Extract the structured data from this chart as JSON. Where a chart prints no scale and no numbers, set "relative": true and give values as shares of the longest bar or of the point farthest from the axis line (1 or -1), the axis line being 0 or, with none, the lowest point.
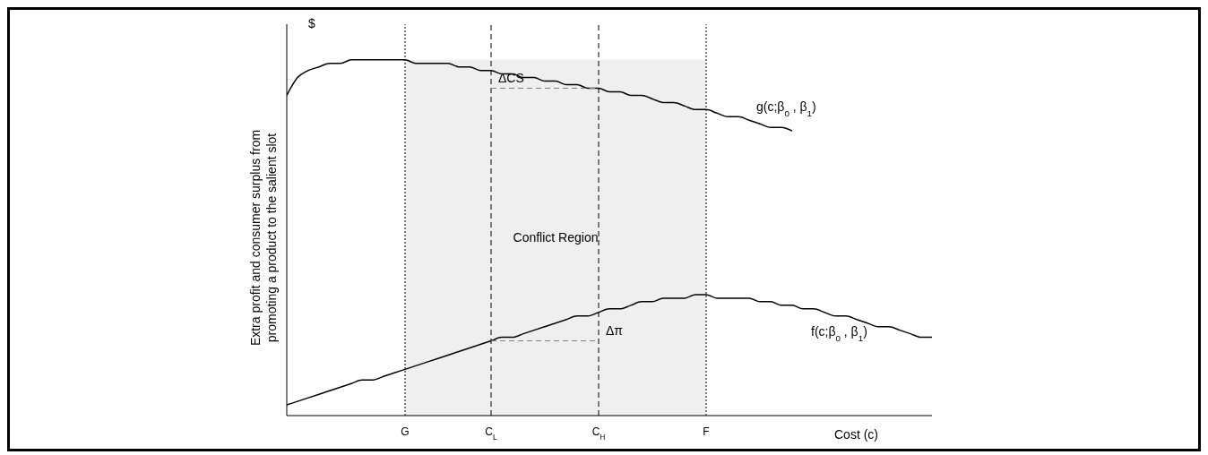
{
  "chart_data": {
    "type": "line",
    "relative": true,
    "xlabel": "Cost (c)",
    "ylabel": "Extra profit and consumer surplus from promoting a product to the salient slot",
    "categories": [
      null,
      null,
      null,
      null,
      null,
      null,
      null,
      null,
      null,
      null,
      null,
      "G",
      null,
      null,
      null,
      null,
      null,
      null,
      null,
      "C$_{L}$",
      null,
      null,
      null,
      null,
      null,
      null,
      null,
      null,
      null,
      "C$_{H}$",
      null,
      null,
      null,
      null,
      null,
      null,
      null,
      null,
      null,
      "F",
      null,
      null,
      null,
      null,
      null,
      null,
      null,
      null,
      null,
      null,
      null,
      null,
      null,
      null,
      null,
      null,
      null,
      null,
      null,
      null,
      null
    ],
    "series": [
      {
        "name": "g(c;β$_{0}$ , β$_{1}$)",
        "color": "#000000",
        "line_style": "solid",
        "values": [
          0.9,
          0.95,
          0.97,
          0.98,
          0.99,
          0.99,
          1.0,
          1.0,
          1.0,
          1.0,
          1.0,
          1.0,
          0.99,
          0.99,
          0.99,
          0.99,
          0.98,
          0.98,
          0.97,
          0.97,
          0.96,
          0.96,
          0.95,
          0.95,
          0.94,
          0.94,
          0.93,
          0.93,
          0.92,
          0.92,
          0.91,
          0.91,
          0.9,
          0.9,
          0.89,
          0.88,
          0.88,
          0.87,
          0.86,
          0.86,
          0.85,
          0.84,
          0.84,
          0.83,
          0.82,
          0.81,
          0.81,
          0.8,
          null,
          null,
          null,
          null,
          null,
          null,
          null,
          null,
          null,
          null,
          null,
          null,
          null
        ]
      },
      {
        "name": "f(c;β$_{0}$ , β$_{1}$)",
        "color": "#000000",
        "line_style": "solid",
        "values": [
          0.03,
          0.04,
          0.05,
          0.06,
          0.07,
          0.08,
          0.09,
          0.1,
          0.1,
          0.11,
          0.12,
          0.13,
          0.14,
          0.15,
          0.16,
          0.17,
          0.18,
          0.19,
          0.2,
          0.21,
          0.22,
          0.22,
          0.23,
          0.24,
          0.25,
          0.26,
          0.27,
          0.28,
          0.28,
          0.29,
          0.3,
          0.3,
          0.31,
          0.32,
          0.32,
          0.33,
          0.33,
          0.33,
          0.34,
          0.34,
          0.33,
          0.33,
          0.33,
          0.33,
          0.32,
          0.32,
          0.31,
          0.31,
          0.3,
          0.3,
          0.29,
          0.28,
          0.28,
          0.27,
          0.26,
          0.25,
          0.25,
          0.24,
          0.23,
          0.22,
          0.22
        ]
      },
      {
        "color": "#7f7f7f",
        "line_style": "dashed",
        "values": [
          null,
          null,
          null,
          null,
          null,
          null,
          null,
          null,
          null,
          null,
          null,
          null,
          null,
          null,
          null,
          null,
          null,
          null,
          null,
          0.92,
          0.92,
          0.92,
          0.92,
          0.92,
          0.92,
          0.92,
          0.92,
          0.92,
          0.92,
          0.92,
          null,
          null,
          null,
          null,
          null,
          null,
          null,
          null,
          null,
          null,
          null,
          null,
          null,
          null,
          null,
          null,
          null,
          null,
          null,
          null,
          null,
          null,
          null,
          null,
          null,
          null,
          null,
          null,
          null,
          null,
          null
        ]
      },
      {
        "color": "#7f7f7f",
        "line_style": "dashed",
        "values": [
          null,
          null,
          null,
          null,
          null,
          null,
          null,
          null,
          null,
          null,
          null,
          null,
          null,
          null,
          null,
          null,
          null,
          null,
          null,
          0.21,
          0.21,
          0.21,
          0.21,
          0.21,
          0.21,
          0.21,
          0.21,
          0.21,
          0.21,
          0.21,
          null,
          null,
          null,
          null,
          null,
          null,
          null,
          null,
          null,
          null,
          null,
          null,
          null,
          null,
          null,
          null,
          null,
          null,
          null,
          null,
          null,
          null,
          null,
          null,
          null,
          null,
          null,
          null,
          null,
          null,
          null
        ]
      }
    ],
    "ref_lines": [
      {
        "axis": "x",
        "value": "G",
        "line_style": "dotted",
        "color": "#000000"
      },
      {
        "axis": "x",
        "value": "C$_{L}$",
        "line_style": "dashed",
        "color": "#000000"
      },
      {
        "axis": "x",
        "value": "C$_{H}$",
        "line_style": "dashed",
        "color": "#000000"
      },
      {
        "axis": "x",
        "value": "F",
        "line_style": "dotted",
        "color": "#000000"
      }
    ],
    "bands": [
      {
        "axis": "x",
        "from": "G",
        "to": "F",
        "label": "Conflict Region",
        "color": "#efefef"
      }
    ],
    "annotations": [
      "$",
      {
        "text": "ΔCS",
        "x": "C$_{L}$",
        "y": 0.95
      },
      {
        "text": "Δπ",
        "x": "C$_{H}$",
        "y": 0.24
      }
    ]
  }
}
